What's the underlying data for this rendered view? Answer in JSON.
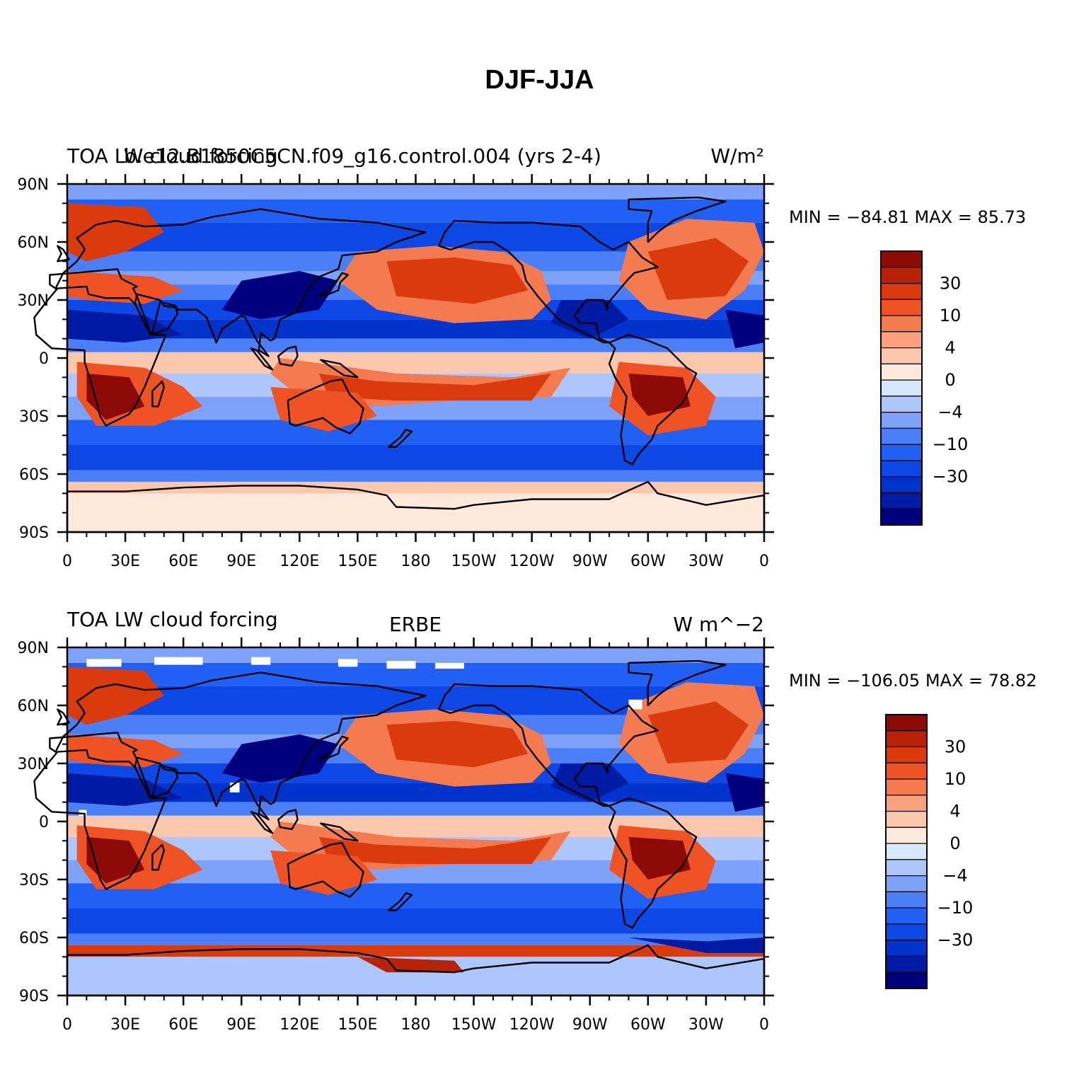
{
  "figure": {
    "title": "DJF-JJA"
  },
  "colors": {
    "scale": [
      "#00007f",
      "#001ba3",
      "#0032cc",
      "#0d47e6",
      "#2060f5",
      "#4a7ff7",
      "#7ea2f9",
      "#adc6fb",
      "#d8e8fc",
      "#fde8dc",
      "#fcc8ad",
      "#f9a07c",
      "#f47a50",
      "#ef5324",
      "#db3a0c",
      "#b82208",
      "#8c0a06"
    ]
  },
  "panels": [
    {
      "id": "model",
      "title_left": "TOA LW cloud forcing",
      "title_left_overlap": "b.e12.B1850C5CN.f09_g16.control.004 (yrs 2-4)",
      "title_center": "",
      "units": "W/m²",
      "min_max": "MIN = −84.81  MAX =  85.73",
      "lat_ticks": [
        "90N",
        "60N",
        "30N",
        "0",
        "30S",
        "60S",
        "90S"
      ],
      "lon_ticks": [
        "0",
        "30E",
        "60E",
        "90E",
        "120E",
        "150E",
        "180",
        "150W",
        "120W",
        "90W",
        "60W",
        "30W",
        "0"
      ],
      "colorbar_labels": [
        "30",
        "10",
        "4",
        "0",
        "−4",
        "−10",
        "−30"
      ]
    },
    {
      "id": "obs",
      "title_left": "TOA LW cloud forcing",
      "title_left_overlap": "",
      "title_center": "ERBE",
      "units": "W m^−2",
      "min_max": "MIN = −106.05 MAX =  78.82",
      "lat_ticks": [
        "90N",
        "60N",
        "30N",
        "0",
        "30S",
        "60S",
        "90S"
      ],
      "lon_ticks": [
        "0",
        "30E",
        "60E",
        "90E",
        "120E",
        "150E",
        "180",
        "150W",
        "120W",
        "90W",
        "60W",
        "30W",
        "0"
      ],
      "colorbar_labels": [
        "30",
        "10",
        "4",
        "0",
        "−4",
        "−10",
        "−30"
      ]
    }
  ]
}
